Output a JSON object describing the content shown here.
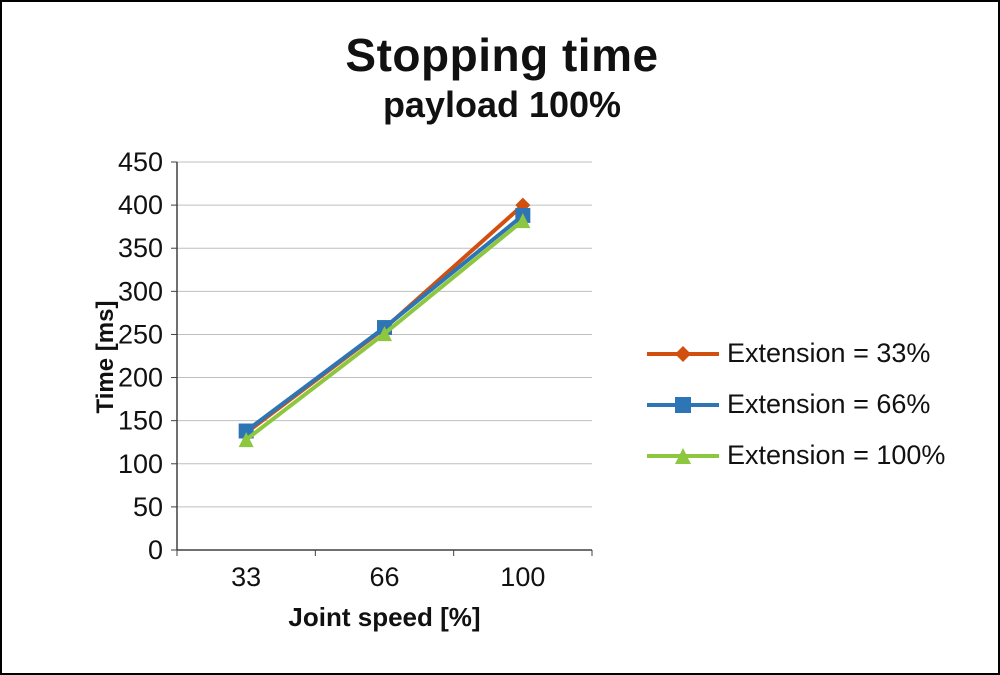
{
  "chart_data": {
    "type": "line",
    "title": "Stopping time",
    "subtitle": "payload 100%",
    "categories": [
      "33",
      "66",
      "100"
    ],
    "xlabel": "Joint speed [%]",
    "ylabel": "Time [ms]",
    "ylim": [
      0,
      450
    ],
    "ytick_step": 50,
    "grid": true,
    "legend_position": "right",
    "series": [
      {
        "name": "Extension = 33%",
        "marker": "diamond",
        "color": "#D2500F",
        "values": [
          136,
          257,
          400
        ]
      },
      {
        "name": "Extension = 66%",
        "marker": "square",
        "color": "#2E75B6",
        "values": [
          138,
          258,
          388
        ]
      },
      {
        "name": "Extension = 100%",
        "marker": "triangle",
        "color": "#8DC63F",
        "values": [
          128,
          251,
          382
        ]
      }
    ]
  }
}
